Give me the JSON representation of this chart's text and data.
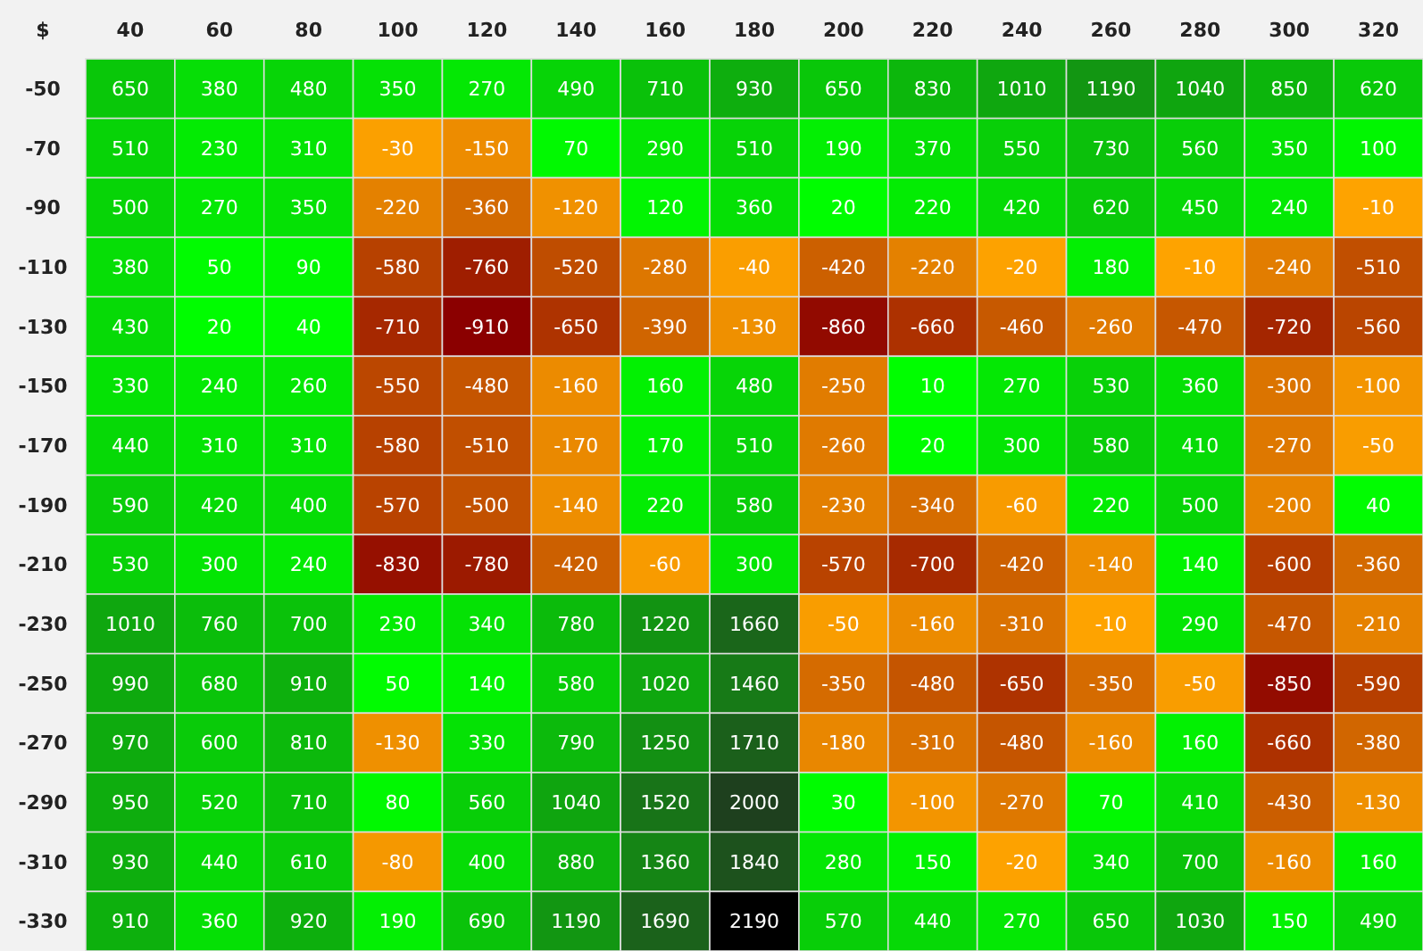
{
  "chart_data": {
    "type": "heatmap",
    "title": "$",
    "data_labels": true,
    "categories": [
      "40",
      "60",
      "80",
      "100",
      "120",
      "140",
      "160",
      "180",
      "200",
      "220",
      "240",
      "260",
      "280",
      "300",
      "320"
    ],
    "y_categories": [
      "-50",
      "-70",
      "-90",
      "-110",
      "-130",
      "-150",
      "-170",
      "-190",
      "-210",
      "-230",
      "-250",
      "-270",
      "-290",
      "-310",
      "-330"
    ],
    "cells": [
      [
        650,
        380,
        480,
        350,
        270,
        490,
        710,
        930,
        650,
        830,
        1010,
        1190,
        1040,
        850,
        620
      ],
      [
        510,
        230,
        310,
        -30,
        -150,
        70,
        290,
        510,
        190,
        370,
        550,
        730,
        560,
        350,
        100
      ],
      [
        500,
        270,
        350,
        -220,
        -360,
        -120,
        120,
        360,
        20,
        220,
        420,
        620,
        450,
        240,
        -10
      ],
      [
        380,
        50,
        90,
        -580,
        -760,
        -520,
        -280,
        -40,
        -420,
        -220,
        -20,
        180,
        -10,
        -240,
        -510
      ],
      [
        430,
        20,
        40,
        -710,
        -910,
        -650,
        -390,
        -130,
        -860,
        -660,
        -460,
        -260,
        -470,
        -720,
        -560
      ],
      [
        330,
        240,
        260,
        -550,
        -480,
        -160,
        160,
        480,
        -250,
        10,
        270,
        530,
        360,
        -300,
        -100
      ],
      [
        440,
        310,
        310,
        -580,
        -510,
        -170,
        170,
        510,
        -260,
        20,
        300,
        580,
        410,
        -270,
        -50
      ],
      [
        590,
        420,
        400,
        -570,
        -500,
        -140,
        220,
        580,
        -230,
        -340,
        -60,
        220,
        500,
        -200,
        40
      ],
      [
        530,
        300,
        240,
        -830,
        -780,
        -420,
        -60,
        300,
        -570,
        -700,
        -420,
        -140,
        140,
        -600,
        -360
      ],
      [
        1010,
        760,
        700,
        230,
        340,
        780,
        1220,
        1660,
        -50,
        -160,
        -310,
        -10,
        290,
        -470,
        -210
      ],
      [
        990,
        680,
        910,
        50,
        140,
        580,
        1020,
        1460,
        -350,
        -480,
        -650,
        -350,
        -50,
        -850,
        -590
      ],
      [
        970,
        600,
        810,
        -130,
        330,
        790,
        1250,
        1710,
        -180,
        -310,
        -480,
        -160,
        160,
        -660,
        -380
      ],
      [
        950,
        520,
        710,
        80,
        560,
        1040,
        1520,
        2000,
        30,
        -100,
        -270,
        70,
        410,
        -430,
        -130
      ],
      [
        930,
        440,
        610,
        -80,
        400,
        880,
        1360,
        1840,
        280,
        150,
        -20,
        340,
        700,
        -160,
        160
      ],
      [
        910,
        360,
        920,
        190,
        690,
        1190,
        1690,
        2190,
        570,
        440,
        270,
        650,
        1030,
        150,
        490
      ]
    ]
  }
}
